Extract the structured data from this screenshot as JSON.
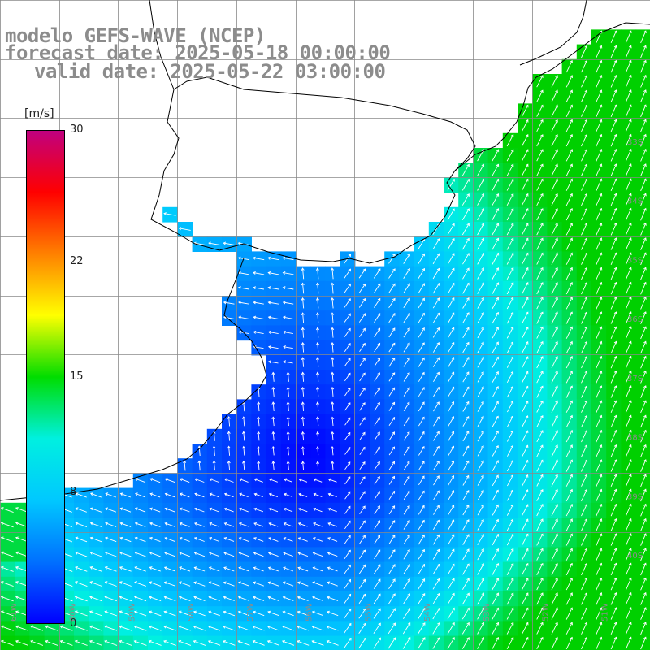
{
  "title": {
    "model": "modelo GEFS-WAVE (NCEP)",
    "forecast": "forecast date: 2025-05-18 00:00:00",
    "valid": "valid date: 2025-05-22 03:00:00"
  },
  "colorbar": {
    "unit": "[m/s]",
    "ticks": [
      "30",
      "22",
      "15",
      "8",
      "0"
    ],
    "tick_values": [
      30,
      22,
      15,
      8,
      0
    ],
    "stops": [
      "#0000ff",
      "#0070ff",
      "#00c8ff",
      "#00f0e0",
      "#00dd00",
      "#ffff00",
      "#ff8000",
      "#ff0000",
      "#c00080"
    ]
  },
  "map": {
    "lon_labels": [
      "61W",
      "60W",
      "59W",
      "58W",
      "57W",
      "56W",
      "55W",
      "54W",
      "53W",
      "52W",
      "51W"
    ],
    "lat_labels": [
      "33S",
      "34S",
      "35S",
      "36S",
      "37S",
      "38S",
      "39S",
      "40S"
    ],
    "grid": true
  }
}
